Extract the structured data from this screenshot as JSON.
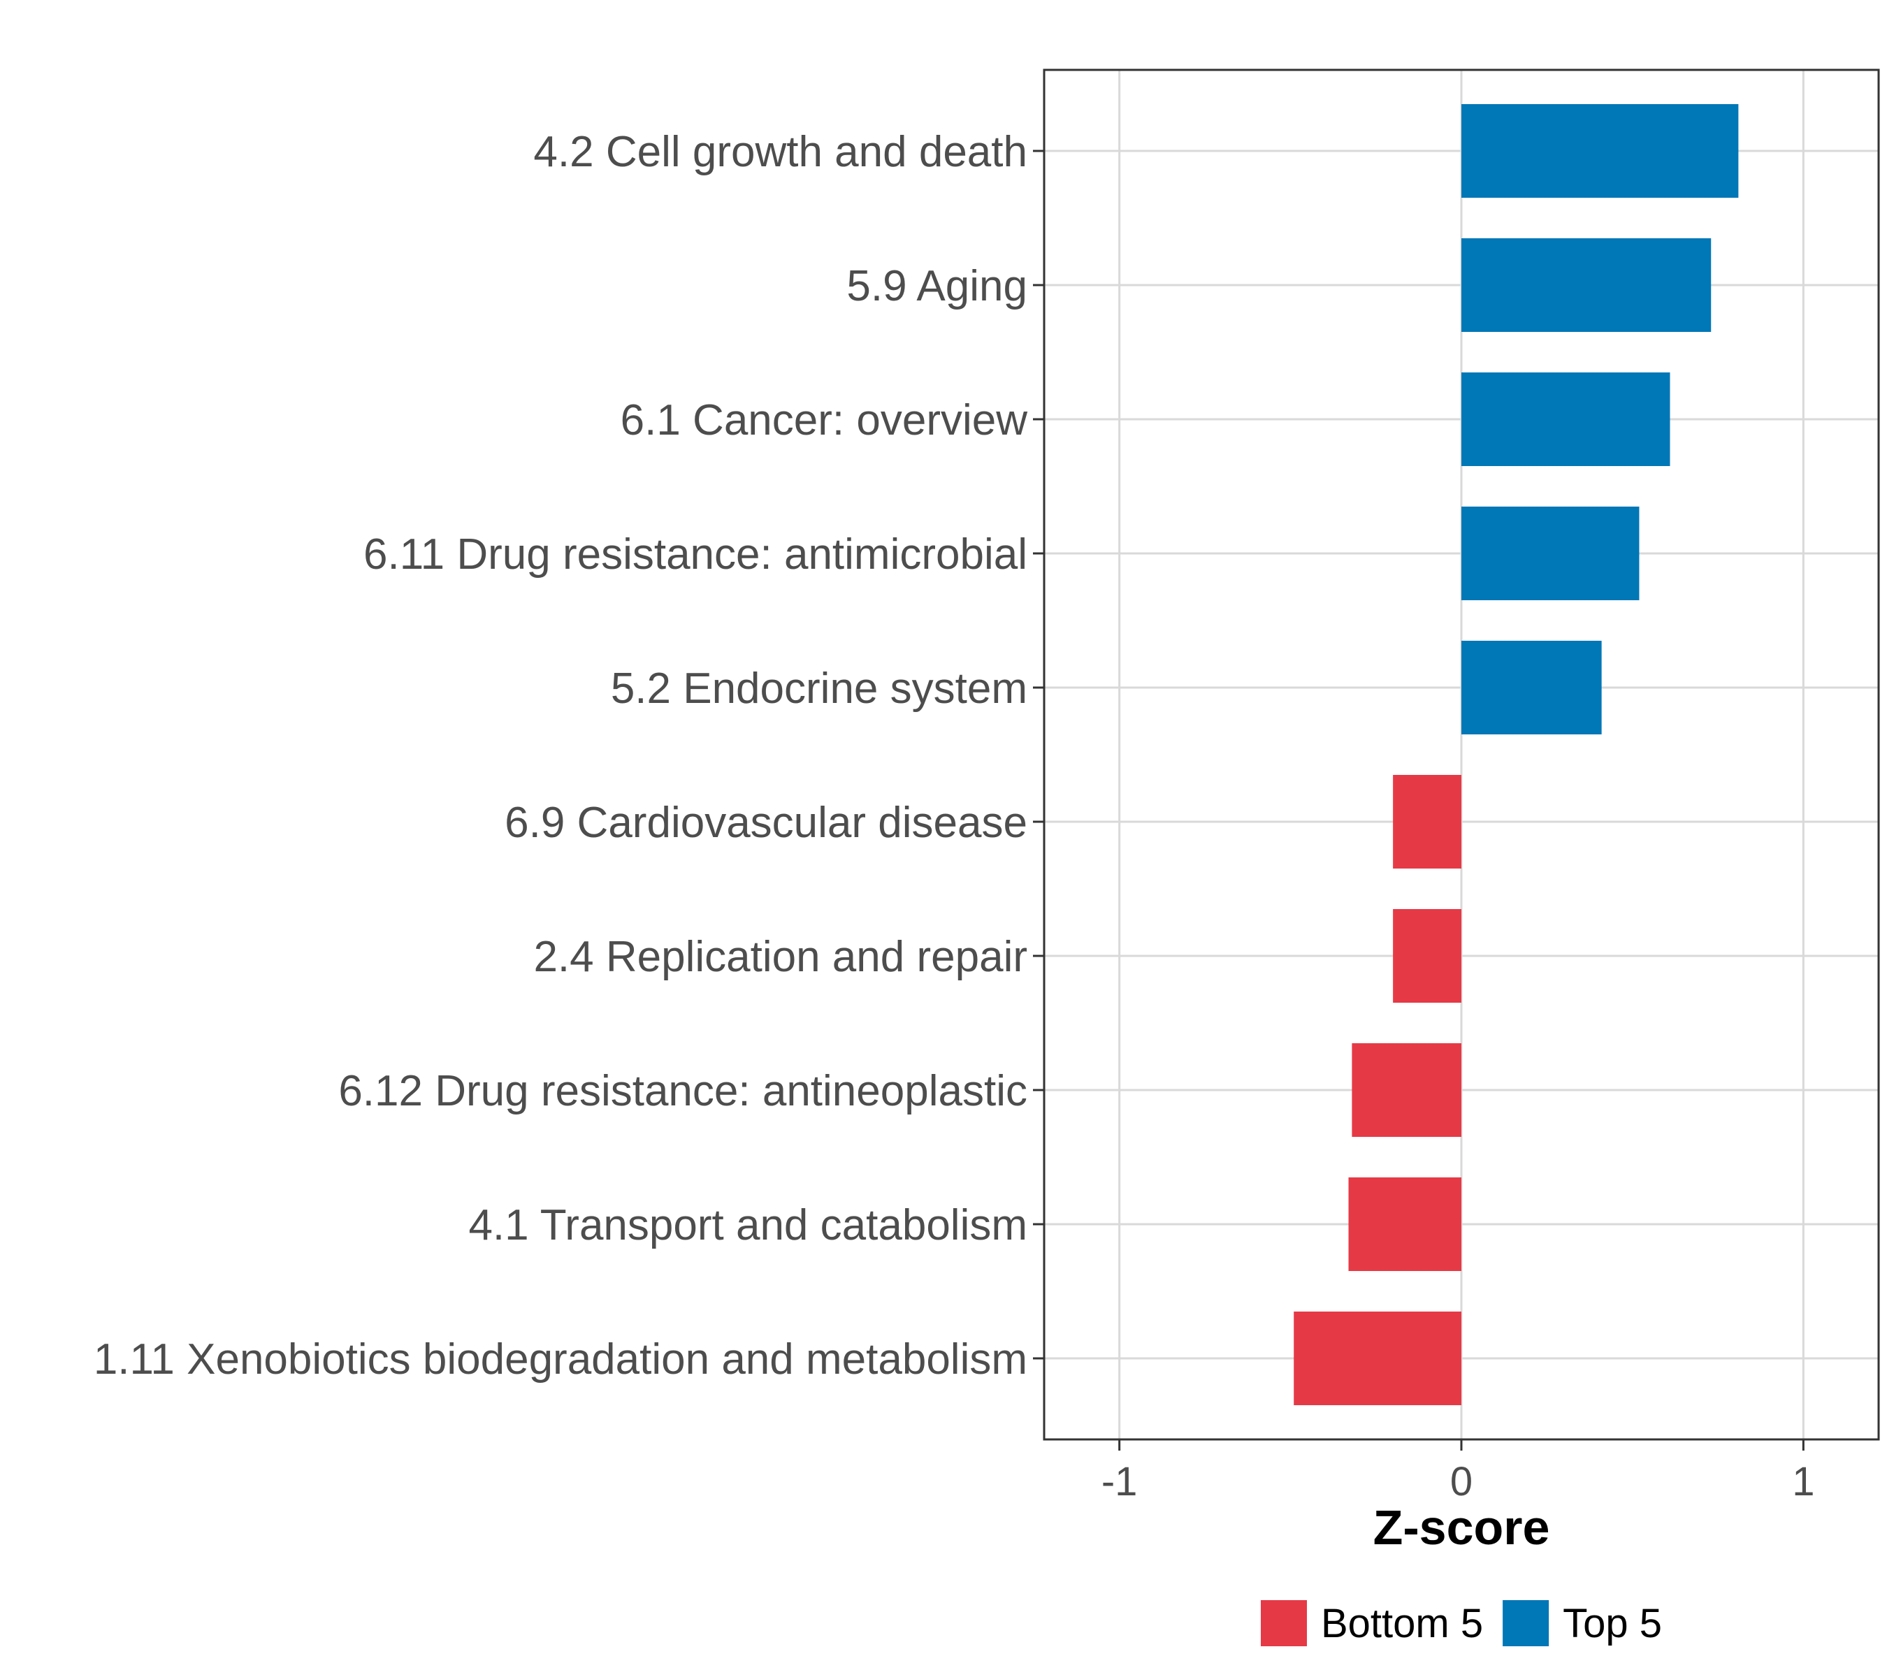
{
  "chart_data": {
    "type": "bar",
    "orientation": "horizontal",
    "categories": [
      "4.2 Cell growth and death",
      "5.9 Aging",
      "6.1 Cancer: overview",
      "6.11 Drug resistance: antimicrobial",
      "5.2 Endocrine system",
      "6.9 Cardiovascular disease",
      "2.4 Replication and repair",
      "6.12 Drug resistance: antineoplastic",
      "4.1 Transport and catabolism",
      "1.11 Xenobiotics biodegradation and metabolism"
    ],
    "values": [
      0.81,
      0.73,
      0.61,
      0.52,
      0.41,
      -0.2,
      -0.2,
      -0.32,
      -0.33,
      -0.49
    ],
    "groups": [
      "Top 5",
      "Top 5",
      "Top 5",
      "Top 5",
      "Top 5",
      "Bottom 5",
      "Bottom 5",
      "Bottom 5",
      "Bottom 5",
      "Bottom 5"
    ],
    "xlabel": "Z-score",
    "ylabel": "",
    "xlim": [
      -1.22,
      1.22
    ],
    "xticks": [
      -1,
      0,
      1
    ],
    "xtick_labels": [
      "-1",
      "0",
      "1"
    ],
    "grid": true,
    "legend": {
      "placement": "bottom",
      "entries": [
        {
          "label": "Bottom 5",
          "color": "#E63946"
        },
        {
          "label": "Top 5",
          "color": "#0077B6"
        }
      ]
    }
  }
}
